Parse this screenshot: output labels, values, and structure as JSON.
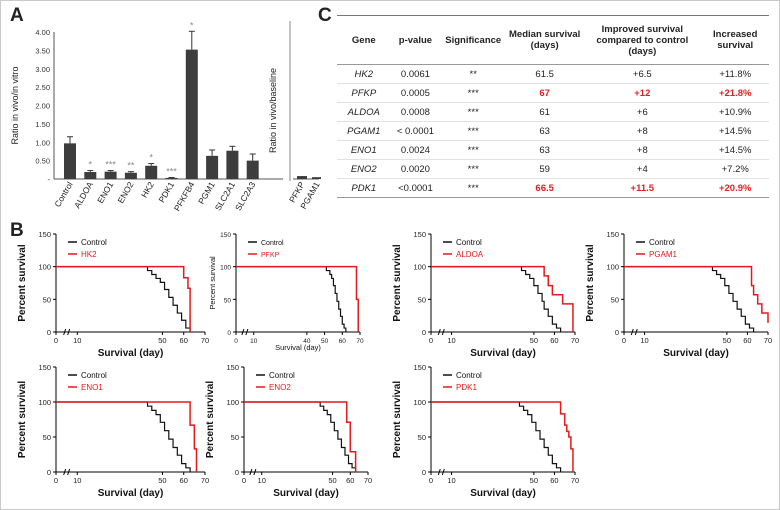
{
  "panel_labels": {
    "a": "A",
    "b": "B",
    "c": "C"
  },
  "colors": {
    "red": "#e31a1c",
    "black": "#111111",
    "bar": "#3d3d3d",
    "highlight": "#e02020"
  },
  "chart_data": [
    {
      "id": "A-main",
      "type": "bar",
      "ylabel": "Ratio in vivo/in vitro",
      "ylim": [
        0,
        4.0
      ],
      "yticks": [
        "4.00",
        "3.50",
        "3.00",
        "2.50",
        "2.00",
        "1.50",
        "1.00",
        "0.50",
        "-"
      ],
      "categories": [
        "Control",
        "ALDOA",
        "ENO1",
        "ENO2",
        "HK2",
        "PDK1",
        "PFKFB4",
        "PGM1",
        "SLC2A1",
        "SLC2A3"
      ],
      "values": [
        0.97,
        0.19,
        0.2,
        0.17,
        0.36,
        0.03,
        3.52,
        0.63,
        0.77,
        0.5
      ],
      "errors": [
        0.18,
        0.04,
        0.03,
        0.03,
        0.06,
        0.01,
        0.5,
        0.16,
        0.12,
        0.18
      ],
      "significance": [
        "",
        "*",
        "***",
        "**",
        "*",
        "***",
        "*",
        "",
        "",
        ""
      ]
    },
    {
      "id": "A-right",
      "type": "bar",
      "ylabel": "Ratio in vivo/baseline",
      "categories": [
        "PFKP",
        "PGAM1"
      ],
      "values": [
        0.08,
        0.05
      ],
      "errors": [
        0.02,
        0.02
      ]
    },
    {
      "id": "B-HK2",
      "type": "line",
      "title": "",
      "xlabel": "Survival (day)",
      "ylabel": "Percent survival",
      "xticks": [
        "0",
        "10",
        "50",
        "60",
        "70"
      ],
      "yticks": [
        "0",
        "50",
        "100",
        "150"
      ],
      "xlim": [
        0,
        70
      ],
      "ylim": [
        0,
        150
      ],
      "legend": [
        "Control",
        "HK2"
      ],
      "series": [
        {
          "name": "Control",
          "x": [
            0,
            40,
            43,
            45,
            47,
            49,
            51,
            53,
            55,
            57,
            59,
            61,
            63
          ],
          "y": [
            100,
            100,
            94,
            88,
            82,
            76,
            65,
            53,
            41,
            29,
            18,
            6,
            0
          ]
        },
        {
          "name": "HK2",
          "x": [
            0,
            56,
            60,
            62,
            63
          ],
          "y": [
            100,
            100,
            83,
            67,
            0
          ]
        }
      ]
    },
    {
      "id": "B-PFKP",
      "type": "line",
      "title": "",
      "xlabel": "Survival (day)",
      "ylabel": "Percent survival",
      "xticks": [
        "0",
        "10",
        "40",
        "50",
        "60",
        "70"
      ],
      "yticks": [
        "0",
        "50",
        "100",
        "150"
      ],
      "xlim": [
        0,
        70
      ],
      "ylim": [
        0,
        150
      ],
      "legend": [
        "Control",
        "PFKP"
      ],
      "series": [
        {
          "name": "Control",
          "x": [
            0,
            48,
            51,
            53,
            54,
            55,
            56,
            57,
            58,
            59,
            60,
            61,
            62
          ],
          "y": [
            100,
            100,
            94,
            88,
            82,
            71,
            59,
            47,
            35,
            24,
            12,
            6,
            0
          ]
        },
        {
          "name": "PFKP",
          "x": [
            0,
            66,
            68,
            69
          ],
          "y": [
            100,
            100,
            50,
            0
          ]
        }
      ]
    },
    {
      "id": "B-ALDOA",
      "type": "line",
      "title": "",
      "xlabel": "Survival (day)",
      "ylabel": "Percent survival",
      "xticks": [
        "0",
        "10",
        "50",
        "60",
        "70"
      ],
      "yticks": [
        "0",
        "50",
        "100",
        "150"
      ],
      "xlim": [
        0,
        70
      ],
      "ylim": [
        0,
        150
      ],
      "legend": [
        "Control",
        "ALDOA"
      ],
      "series": [
        {
          "name": "Control",
          "x": [
            0,
            40,
            44,
            46,
            48,
            50,
            52,
            54,
            55,
            57,
            59,
            61,
            63
          ],
          "y": [
            100,
            100,
            94,
            88,
            82,
            71,
            59,
            47,
            35,
            24,
            12,
            6,
            0
          ]
        },
        {
          "name": "ALDOA",
          "x": [
            0,
            50,
            55,
            57,
            59,
            64,
            69
          ],
          "y": [
            100,
            100,
            86,
            71,
            57,
            43,
            0
          ]
        }
      ]
    },
    {
      "id": "B-PGAM1",
      "type": "line",
      "title": "",
      "xlabel": "Survival (day)",
      "ylabel": "Percent survival",
      "xticks": [
        "0",
        "10",
        "50",
        "60",
        "70"
      ],
      "yticks": [
        "0",
        "50",
        "100",
        "150"
      ],
      "xlim": [
        0,
        70
      ],
      "ylim": [
        0,
        150
      ],
      "legend": [
        "Control",
        "PGAM1"
      ],
      "series": [
        {
          "name": "Control",
          "x": [
            0,
            40,
            43,
            45,
            47,
            49,
            51,
            53,
            55,
            57,
            59,
            61,
            63
          ],
          "y": [
            100,
            100,
            94,
            88,
            82,
            71,
            59,
            47,
            35,
            24,
            12,
            6,
            0
          ]
        },
        {
          "name": "PGAM1",
          "x": [
            0,
            60,
            62,
            63,
            65,
            67,
            70
          ],
          "y": [
            100,
            100,
            71,
            57,
            43,
            29,
            14
          ]
        }
      ]
    },
    {
      "id": "B-ENO1",
      "type": "line",
      "title": "",
      "xlabel": "Survival (day)",
      "ylabel": "Percent survival",
      "xticks": [
        "0",
        "10",
        "50",
        "60",
        "70"
      ],
      "yticks": [
        "0",
        "50",
        "100",
        "150"
      ],
      "xlim": [
        0,
        70
      ],
      "ylim": [
        0,
        150
      ],
      "legend": [
        "Control",
        "ENO1"
      ],
      "series": [
        {
          "name": "Control",
          "x": [
            0,
            40,
            43,
            45,
            47,
            49,
            51,
            53,
            55,
            57,
            59,
            61,
            63
          ],
          "y": [
            100,
            100,
            94,
            88,
            82,
            71,
            59,
            47,
            35,
            24,
            12,
            6,
            0
          ]
        },
        {
          "name": "ENO1",
          "x": [
            0,
            55,
            63,
            65,
            66
          ],
          "y": [
            100,
            100,
            67,
            33,
            0
          ]
        }
      ]
    },
    {
      "id": "B-ENO2",
      "type": "line",
      "title": "",
      "xlabel": "Survival (day)",
      "ylabel": "Percent survival",
      "xticks": [
        "0",
        "10",
        "50",
        "60",
        "70"
      ],
      "yticks": [
        "0",
        "50",
        "100",
        "150"
      ],
      "xlim": [
        0,
        70
      ],
      "ylim": [
        0,
        150
      ],
      "legend": [
        "Control",
        "ENO2"
      ],
      "series": [
        {
          "name": "Control",
          "x": [
            0,
            40,
            43,
            45,
            47,
            49,
            51,
            53,
            55,
            57,
            59,
            61,
            63
          ],
          "y": [
            100,
            100,
            94,
            88,
            82,
            71,
            59,
            47,
            35,
            24,
            12,
            6,
            0
          ]
        },
        {
          "name": "ENO2",
          "x": [
            0,
            55,
            58,
            60,
            63
          ],
          "y": [
            100,
            100,
            71,
            29,
            0
          ]
        }
      ]
    },
    {
      "id": "B-PDK1",
      "type": "line",
      "title": "",
      "xlabel": "Survival (day)",
      "ylabel": "Percent survival",
      "xticks": [
        "0",
        "10",
        "50",
        "60",
        "70"
      ],
      "yticks": [
        "0",
        "50",
        "100",
        "150"
      ],
      "xlim": [
        0,
        70
      ],
      "ylim": [
        0,
        150
      ],
      "legend": [
        "Control",
        "PDK1"
      ],
      "series": [
        {
          "name": "Control",
          "x": [
            0,
            40,
            43,
            45,
            47,
            49,
            51,
            53,
            55,
            57,
            59,
            61,
            63
          ],
          "y": [
            100,
            100,
            94,
            88,
            82,
            71,
            59,
            47,
            35,
            24,
            12,
            6,
            0
          ]
        },
        {
          "name": "PDK1",
          "x": [
            0,
            60,
            63,
            65,
            66,
            67,
            68,
            69
          ],
          "y": [
            100,
            100,
            83,
            67,
            58,
            50,
            33,
            0
          ]
        }
      ]
    },
    {
      "id": "C-table",
      "type": "table",
      "columns": [
        "Gene",
        "p-value",
        "Significance",
        "Median survival (days)",
        "Improved survival compared to control (days)",
        "Increased survival"
      ],
      "rows": [
        [
          "HK2",
          "0.0061",
          "**",
          "61.5",
          "+6.5",
          "+11.8%"
        ],
        [
          "PFKP",
          "0.0005",
          "***",
          "67",
          "+12",
          "+21.8%"
        ],
        [
          "ALDOA",
          "0.0008",
          "***",
          "61",
          "+6",
          "+10.9%"
        ],
        [
          "PGAM1",
          "< 0.0001",
          "***",
          "63",
          "+8",
          "+14.5%"
        ],
        [
          "ENO1",
          "0.0024",
          "***",
          "63",
          "+8",
          "+14.5%"
        ],
        [
          "ENO2",
          "0.0020",
          "***",
          "59",
          "+4",
          "+7.2%"
        ],
        [
          "PDK1",
          "<0.0001",
          "***",
          "66.5",
          "+11.5",
          "+20.9%"
        ]
      ],
      "highlight_rows": [
        "PFKP",
        "PDK1"
      ]
    }
  ]
}
